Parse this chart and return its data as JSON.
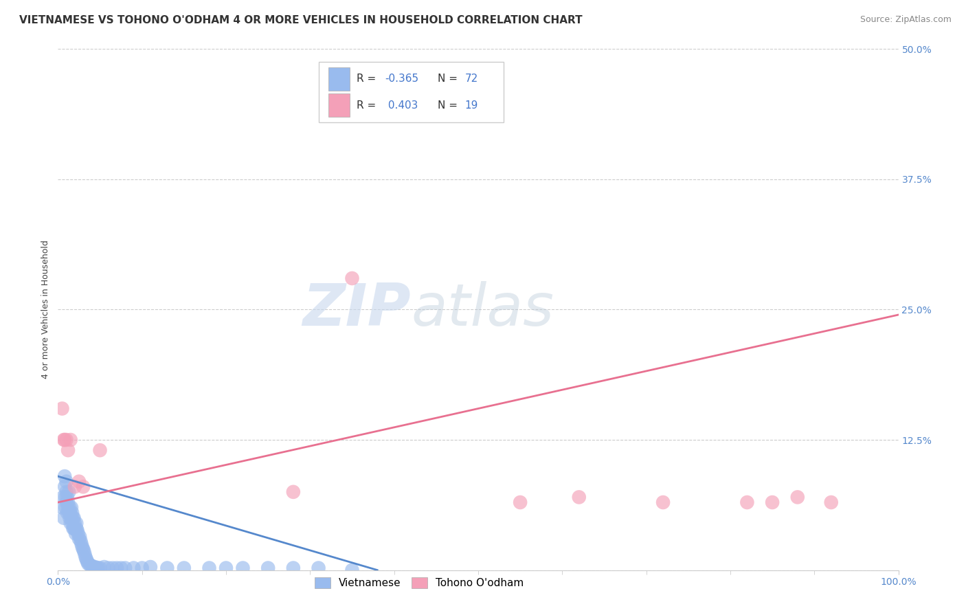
{
  "title": "VIETNAMESE VS TOHONO O'ODHAM 4 OR MORE VEHICLES IN HOUSEHOLD CORRELATION CHART",
  "source": "Source: ZipAtlas.com",
  "ylabel": "4 or more Vehicles in Household",
  "xlim": [
    0.0,
    1.0
  ],
  "ylim": [
    0.0,
    0.5
  ],
  "xticks": [
    0.0,
    1.0
  ],
  "xticklabels": [
    "0.0%",
    "100.0%"
  ],
  "yticks": [
    0.0,
    0.125,
    0.25,
    0.375,
    0.5
  ],
  "yticklabels": [
    "",
    "12.5%",
    "25.0%",
    "37.5%",
    "50.0%"
  ],
  "watermark_zip": "ZIP",
  "watermark_atlas": "atlas",
  "legend_labels": [
    "Vietnamese",
    "Tohono O'odham"
  ],
  "blue_scatter_x": [
    0.005,
    0.006,
    0.007,
    0.008,
    0.008,
    0.009,
    0.009,
    0.01,
    0.01,
    0.01,
    0.011,
    0.011,
    0.012,
    0.012,
    0.013,
    0.013,
    0.014,
    0.014,
    0.015,
    0.015,
    0.016,
    0.016,
    0.017,
    0.017,
    0.018,
    0.018,
    0.019,
    0.019,
    0.02,
    0.02,
    0.021,
    0.022,
    0.022,
    0.023,
    0.024,
    0.025,
    0.026,
    0.027,
    0.028,
    0.029,
    0.03,
    0.031,
    0.032,
    0.033,
    0.034,
    0.035,
    0.036,
    0.038,
    0.04,
    0.042,
    0.044,
    0.046,
    0.048,
    0.05,
    0.055,
    0.06,
    0.065,
    0.07,
    0.075,
    0.08,
    0.09,
    0.1,
    0.11,
    0.13,
    0.15,
    0.18,
    0.2,
    0.22,
    0.25,
    0.28,
    0.31,
    0.35
  ],
  "blue_scatter_y": [
    0.06,
    0.07,
    0.05,
    0.08,
    0.09,
    0.06,
    0.07,
    0.085,
    0.075,
    0.065,
    0.055,
    0.07,
    0.065,
    0.06,
    0.055,
    0.075,
    0.05,
    0.06,
    0.055,
    0.045,
    0.05,
    0.06,
    0.045,
    0.055,
    0.04,
    0.05,
    0.04,
    0.05,
    0.04,
    0.045,
    0.035,
    0.04,
    0.045,
    0.038,
    0.035,
    0.03,
    0.032,
    0.028,
    0.025,
    0.022,
    0.02,
    0.018,
    0.015,
    0.012,
    0.01,
    0.008,
    0.006,
    0.005,
    0.004,
    0.003,
    0.003,
    0.002,
    0.002,
    0.002,
    0.003,
    0.002,
    0.002,
    0.002,
    0.002,
    0.002,
    0.002,
    0.002,
    0.003,
    0.002,
    0.002,
    0.002,
    0.002,
    0.002,
    0.002,
    0.002,
    0.002,
    0.0
  ],
  "pink_scatter_x": [
    0.005,
    0.007,
    0.008,
    0.01,
    0.012,
    0.015,
    0.02,
    0.025,
    0.03,
    0.05,
    0.28,
    0.35,
    0.55,
    0.62,
    0.72,
    0.82,
    0.85,
    0.88,
    0.92
  ],
  "pink_scatter_y": [
    0.155,
    0.125,
    0.125,
    0.125,
    0.115,
    0.125,
    0.08,
    0.085,
    0.08,
    0.115,
    0.075,
    0.28,
    0.065,
    0.07,
    0.065,
    0.065,
    0.065,
    0.07,
    0.065
  ],
  "blue_line_x": [
    0.0,
    0.38
  ],
  "blue_line_y": [
    0.09,
    0.0
  ],
  "pink_line_x": [
    0.0,
    1.0
  ],
  "pink_line_y": [
    0.065,
    0.245
  ],
  "blue_color": "#5588cc",
  "pink_color": "#e87090",
  "blue_scatter_color": "#99bbee",
  "pink_scatter_color": "#f4a0b8",
  "title_fontsize": 11,
  "source_fontsize": 9,
  "ylabel_fontsize": 9,
  "tick_fontsize": 10,
  "background_color": "#ffffff",
  "grid_color": "#cccccc",
  "tick_color": "#5588cc"
}
